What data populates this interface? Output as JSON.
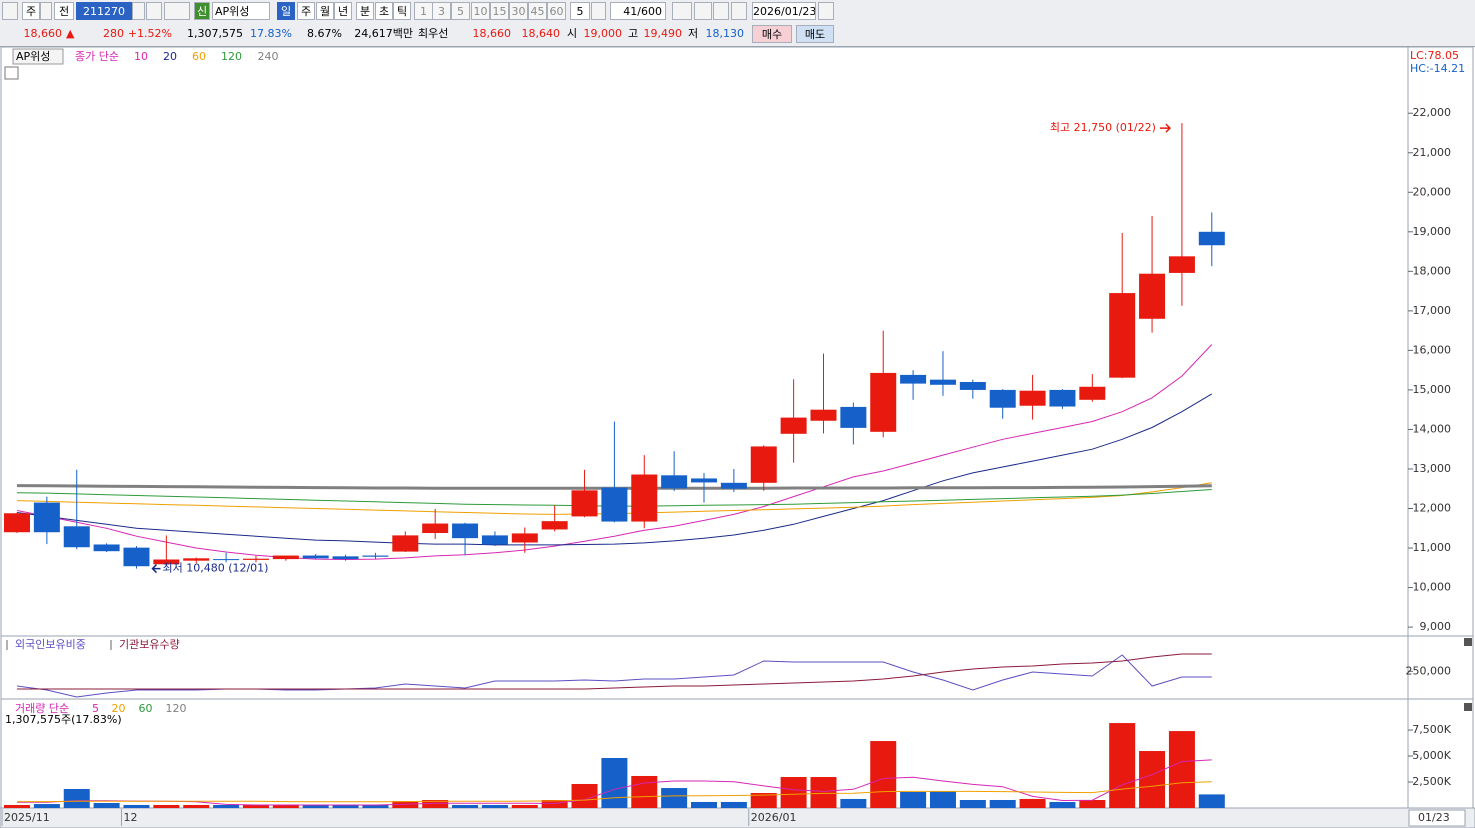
{
  "toolbar": {
    "market": "주",
    "prev": "전",
    "code": "211270",
    "new": "신",
    "name": "AP위성",
    "periods": [
      "일",
      "주",
      "월",
      "년",
      "분",
      "초",
      "틱"
    ],
    "intervals": [
      "1",
      "3",
      "5",
      "10",
      "15",
      "30",
      "45",
      "60"
    ],
    "interval_input": "5",
    "count": "41/600",
    "date": "2026/01/23"
  },
  "quote_bar": {
    "price": "18,660",
    "direction": "▲",
    "change": "280",
    "change_rate": "+1.52%",
    "volume": "1,307,575",
    "volume_rate": "17.83%",
    "turnover": "8.67%",
    "amount": "24,617백만",
    "best_label": "최우선",
    "ask": "18,660",
    "bid": "18,640",
    "open_label": "시",
    "open": "19,000",
    "high_label": "고",
    "high": "19,490",
    "low_label": "저",
    "low": "18,130",
    "buy": "매수",
    "sell": "매도"
  },
  "chart_data": [
    {
      "type": "candlestick",
      "title": "AP위성",
      "legend_title": "종가 단순",
      "categories": [
        "2025/11",
        null,
        null,
        null,
        "12",
        null,
        null,
        null,
        null,
        null,
        null,
        null,
        null,
        null,
        null,
        null,
        null,
        null,
        null,
        null,
        null,
        null,
        null,
        null,
        null,
        "2026/01",
        null,
        null,
        null,
        null,
        null,
        null,
        null,
        null,
        null,
        null,
        null,
        null,
        null,
        null,
        null
      ],
      "current_date": "01/23",
      "up_color": "#e8190f",
      "down_color": "#1560c9",
      "open": [
        11400,
        12150,
        11550,
        11090,
        11010,
        10590,
        10680,
        10720,
        10700,
        10720,
        10810,
        10790,
        10810,
        10910,
        11380,
        11620,
        11320,
        11140,
        11470,
        11800,
        12530,
        11670,
        12840,
        12760,
        12650,
        12650,
        13890,
        14220,
        14570,
        13940,
        15380,
        15260,
        15200,
        15000,
        14600,
        15000,
        14750,
        15310,
        16800,
        17960,
        19000
      ],
      "high": [
        11900,
        12300,
        12980,
        11120,
        11050,
        11320,
        10760,
        10880,
        10800,
        10800,
        10850,
        10830,
        10880,
        11420,
        11990,
        11640,
        11420,
        11520,
        12080,
        12980,
        14200,
        13350,
        13450,
        12900,
        13000,
        13600,
        15270,
        15920,
        14680,
        16500,
        15500,
        15980,
        15260,
        15020,
        15380,
        15020,
        15400,
        18970,
        19400,
        21750,
        19490
      ],
      "low": [
        11380,
        11100,
        10970,
        10900,
        10480,
        10560,
        10620,
        10640,
        10640,
        10680,
        10720,
        10680,
        10730,
        10900,
        11230,
        10820,
        11050,
        10880,
        11420,
        11780,
        11650,
        11500,
        12440,
        12150,
        12420,
        12450,
        13160,
        13900,
        13620,
        13800,
        14750,
        14850,
        14780,
        14270,
        14250,
        14520,
        14700,
        15300,
        16450,
        17130,
        18130
      ],
      "close": [
        11880,
        11400,
        11020,
        10920,
        10540,
        10710,
        10740,
        10700,
        10730,
        10810,
        10740,
        10720,
        10780,
        11320,
        11620,
        11250,
        11090,
        11370,
        11680,
        12460,
        11670,
        12860,
        12510,
        12660,
        12500,
        13570,
        14300,
        14500,
        14040,
        15430,
        15160,
        15130,
        15000,
        14550,
        14980,
        14580,
        15080,
        17450,
        17940,
        18380,
        18660
      ],
      "series": [
        {
          "name": "10",
          "color": "#d726b5",
          "values": [
            11950,
            11800,
            11650,
            11500,
            11300,
            11150,
            11000,
            10900,
            10820,
            10760,
            10720,
            10710,
            10720,
            10750,
            10800,
            10830,
            10880,
            10950,
            11050,
            11170,
            11300,
            11450,
            11550,
            11700,
            11850,
            12050,
            12300,
            12550,
            12800,
            12950,
            13150,
            13350,
            13550,
            13750,
            13900,
            14050,
            14200,
            14450,
            14800,
            15350,
            16150
          ]
        },
        {
          "name": "20",
          "color": "#1a2a8a",
          "values": [
            11900,
            11800,
            11700,
            11600,
            11500,
            11450,
            11400,
            11350,
            11300,
            11250,
            11200,
            11180,
            11150,
            11120,
            11100,
            11100,
            11080,
            11080,
            11080,
            11090,
            11100,
            11130,
            11180,
            11250,
            11330,
            11450,
            11600,
            11800,
            12000,
            12200,
            12450,
            12700,
            12900,
            13050,
            13200,
            13350,
            13500,
            13750,
            14050,
            14450,
            14900
          ]
        },
        {
          "name": "60",
          "color": "#f0a000",
          "values": [
            12200,
            12180,
            12160,
            12140,
            12120,
            12100,
            12080,
            12060,
            12040,
            12020,
            12000,
            11980,
            11960,
            11940,
            11920,
            11900,
            11880,
            11860,
            11850,
            11860,
            11870,
            11890,
            11910,
            11930,
            11950,
            11970,
            11990,
            12010,
            12030,
            12060,
            12100,
            12130,
            12160,
            12190,
            12220,
            12250,
            12280,
            12330,
            12420,
            12530,
            12650
          ]
        },
        {
          "name": "120",
          "color": "#2e9a3a",
          "values": [
            12400,
            12390,
            12370,
            12350,
            12330,
            12310,
            12290,
            12270,
            12250,
            12230,
            12210,
            12190,
            12170,
            12150,
            12130,
            12110,
            12100,
            12090,
            12080,
            12070,
            12060,
            12060,
            12070,
            12080,
            12090,
            12100,
            12110,
            12130,
            12150,
            12170,
            12190,
            12210,
            12230,
            12250,
            12270,
            12290,
            12310,
            12340,
            12380,
            12430,
            12480
          ]
        },
        {
          "name": "240",
          "color": "#808080",
          "values": [
            12580,
            12575,
            12570,
            12565,
            12560,
            12555,
            12550,
            12545,
            12540,
            12535,
            12530,
            12525,
            12520,
            12520,
            12515,
            12515,
            12510,
            12510,
            12510,
            12510,
            12510,
            12510,
            12510,
            12510,
            12515,
            12515,
            12520,
            12520,
            12520,
            12520,
            12525,
            12525,
            12525,
            12530,
            12530,
            12535,
            12540,
            12545,
            12555,
            12565,
            12575
          ]
        }
      ],
      "ylim": [
        8800,
        23650
      ],
      "yticks": [
        {
          "value": 9000,
          "label": "9,000"
        },
        {
          "value": 10000,
          "label": "10,000"
        },
        {
          "value": 11000,
          "label": "11,000"
        },
        {
          "value": 12000,
          "label": "12,000"
        },
        {
          "value": 13000,
          "label": "13,000"
        },
        {
          "value": 14000,
          "label": "14,000"
        },
        {
          "value": 15000,
          "label": "15,000"
        },
        {
          "value": 16000,
          "label": "16,000"
        },
        {
          "value": 17000,
          "label": "17,000"
        },
        {
          "value": 18000,
          "label": "18,000"
        },
        {
          "value": 19000,
          "label": "19,000"
        },
        {
          "value": 20000,
          "label": "20,000"
        },
        {
          "value": 21000,
          "label": "21,000"
        },
        {
          "value": 22000,
          "label": "22,000"
        }
      ],
      "annotations": [
        {
          "text": "최고 21,750 (01/22)",
          "color": "#e8190f"
        },
        {
          "text": "최저 10,480 (12/01)",
          "color": "#1a2a8a"
        }
      ],
      "indicators": [
        {
          "text": "LC:78.05",
          "color": "#e8190f"
        },
        {
          "text": "HC:-14.21",
          "color": "#1560c9"
        }
      ]
    },
    {
      "type": "line",
      "series": [
        {
          "name": "외국인보유비중",
          "color": "#5b4fc4",
          "values": [
            228000,
            222000,
            211500,
            217500,
            222000,
            222000,
            222000,
            223500,
            223500,
            222000,
            222000,
            223500,
            225000,
            231000,
            228000,
            225000,
            235500,
            235500,
            235500,
            237000,
            235500,
            238500,
            238500,
            241500,
            244500,
            265500,
            264000,
            264000,
            264000,
            264000,
            249000,
            237000,
            222000,
            237000,
            249000,
            246000,
            243000,
            274500,
            228000,
            241500,
            241500
          ]
        },
        {
          "name": "기관보유수량",
          "color": "#8b1a3a",
          "values": [
            223500,
            223500,
            223500,
            223500,
            223500,
            223500,
            223500,
            223500,
            223500,
            223500,
            223500,
            223500,
            223500,
            223500,
            223500,
            223500,
            223500,
            223500,
            223500,
            223500,
            225000,
            226500,
            228000,
            228000,
            229500,
            231000,
            232500,
            234000,
            235500,
            238500,
            243000,
            249000,
            253500,
            256500,
            258000,
            261000,
            262500,
            265500,
            271500,
            276000,
            276000
          ]
        }
      ],
      "ylim": [
        210000,
        297000
      ],
      "yticks": [
        {
          "value": 250000,
          "label": "250,000"
        }
      ]
    },
    {
      "type": "bar",
      "title": "거래량 단순",
      "values": [
        290000,
        380000,
        1830000,
        480000,
        290000,
        290000,
        290000,
        290000,
        290000,
        290000,
        290000,
        290000,
        290000,
        670000,
        770000,
        290000,
        290000,
        290000,
        770000,
        2310000,
        4810000,
        3080000,
        1920000,
        580000,
        580000,
        1440000,
        2980000,
        2980000,
        870000,
        6440000,
        1540000,
        1630000,
        770000,
        770000,
        870000,
        580000,
        770000,
        8170000,
        5480000,
        7400000,
        1307575
      ],
      "value_note": "1,307,575주(17.83%)",
      "series": [
        {
          "name": "5",
          "color": "#d726b5",
          "values": [
            550000,
            560000,
            700000,
            700000,
            660000,
            650000,
            600000,
            350000,
            290000,
            290000,
            290000,
            290000,
            290000,
            370000,
            460000,
            460000,
            460000,
            460000,
            430000,
            790000,
            1800000,
            2400000,
            2600000,
            2600000,
            2530000,
            2130000,
            1750000,
            1600000,
            1800000,
            2840000,
            2960000,
            2600000,
            2270000,
            2050000,
            1120000,
            720000,
            750000,
            2230000,
            3200000,
            4470000,
            4630000
          ]
        },
        {
          "name": "20",
          "color": "#f0a000",
          "values": [
            620000,
            620000,
            640000,
            640000,
            640000,
            640000,
            640000,
            640000,
            640000,
            620000,
            600000,
            600000,
            600000,
            620000,
            640000,
            640000,
            640000,
            660000,
            680000,
            760000,
            980000,
            1100000,
            1160000,
            1180000,
            1200000,
            1240000,
            1320000,
            1400000,
            1420000,
            1580000,
            1600000,
            1600000,
            1600000,
            1580000,
            1540000,
            1500000,
            1480000,
            1820000,
            2100000,
            2420000,
            2520000
          ]
        }
      ],
      "legend_extra": [
        {
          "name": "60",
          "color": "#2e9a3a"
        },
        {
          "name": "120",
          "color": "#808080"
        }
      ],
      "ylim": [
        0,
        10100000
      ],
      "yticks": [
        {
          "value": 2500000,
          "label": "2,500K"
        },
        {
          "value": 5000000,
          "label": "5,000K"
        },
        {
          "value": 7500000,
          "label": "7,500K"
        }
      ]
    }
  ]
}
